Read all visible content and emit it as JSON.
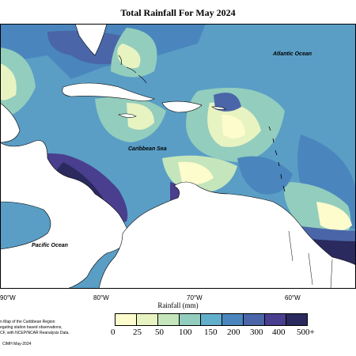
{
  "title": "Total Rainfall For May 2024",
  "ocean_labels": {
    "atlantic": "Atlantic Ocean",
    "caribbean": "Caribbean Sea",
    "pacific": "Pacific Ocean"
  },
  "longitude_labels": [
    "90°W",
    "80°W",
    "70°W",
    "60°W"
  ],
  "colorbar": {
    "label": "Rainfall (mm)",
    "ticks": [
      "0",
      "25",
      "50",
      "100",
      "150",
      "200",
      "300",
      "400",
      "500+"
    ],
    "colors": [
      "#fdfccd",
      "#e8f3c2",
      "#c5e6bc",
      "#93cdbd",
      "#62aecd",
      "#4a86bd",
      "#4a66a8",
      "#4a3f8e",
      "#2a2a5e"
    ]
  },
  "notes": [
    "n Map of the Caribbean Region",
    "egating station based observations,",
    "CF, with NCEP/NCAR Reanalysis Data."
  ],
  "credit": "CIMH May-2024"
}
